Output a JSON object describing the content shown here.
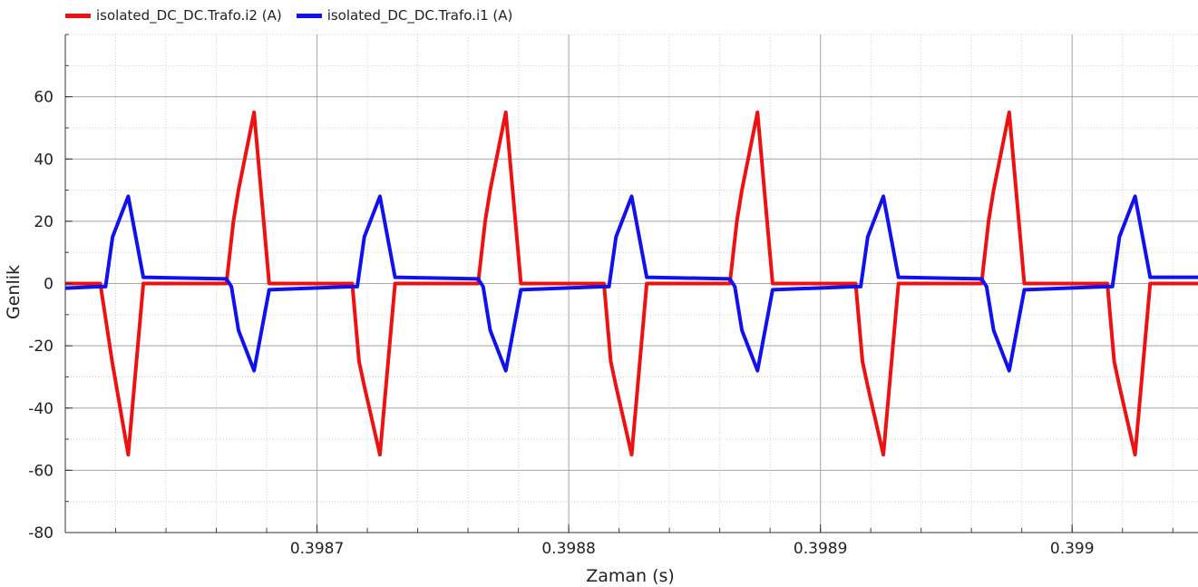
{
  "chart_data": {
    "type": "line",
    "xlabel": "Zaman (s)",
    "ylabel": "Genlik",
    "xlim": [
      0.3986,
      0.39905
    ],
    "ylim": [
      -80,
      80
    ],
    "x_ticks": [
      0.3987,
      0.3988,
      0.3989,
      0.399
    ],
    "x_tick_labels": [
      "0.3987",
      "0.3988",
      "0.3989",
      "0.399"
    ],
    "y_ticks": [
      -80,
      -60,
      -40,
      -20,
      0,
      20,
      40,
      60
    ],
    "y_tick_labels": [
      "-80",
      "-60",
      "-40",
      "-20",
      "0",
      "20",
      "40",
      "60"
    ],
    "grid": true,
    "legend_position": "top-left",
    "series": [
      {
        "name": "isolated_DC_DC.Trafo.i2 (A)",
        "color": "#ee1111",
        "x": [
          0.3986,
          0.3986139,
          0.3986186,
          0.398625,
          0.398631,
          0.398664,
          0.3986668,
          0.3986688,
          0.398675,
          0.398681,
          0.398714,
          0.3987167,
          0.3987188,
          0.398725,
          0.398731,
          0.398764,
          0.3987668,
          0.3987688,
          0.398775,
          0.398781,
          0.398814,
          0.3988167,
          0.3988188,
          0.398825,
          0.398831,
          0.398864,
          0.3988668,
          0.3988688,
          0.398875,
          0.398881,
          0.398914,
          0.3989167,
          0.3989188,
          0.398925,
          0.398931,
          0.398964,
          0.3989668,
          0.3989688,
          0.398975,
          0.398981,
          0.399014,
          0.3990167,
          0.3990188,
          0.399025,
          0.399031,
          0.39905
        ],
        "y": [
          0,
          0,
          -25,
          -55,
          0,
          0,
          20,
          30,
          55,
          0,
          0,
          -25,
          -33,
          -55,
          0,
          0,
          20,
          30,
          55,
          0,
          0,
          -25,
          -33,
          -55,
          0,
          0,
          20,
          30,
          55,
          0,
          0,
          -25,
          -33,
          -55,
          0,
          0,
          20,
          30,
          55,
          0,
          0,
          -25,
          -33,
          -55,
          0,
          0
        ]
      },
      {
        "name": "isolated_DC_DC.Trafo.i1 (A)",
        "color": "#1111ee",
        "x": [
          0.3986,
          0.398614,
          0.398616,
          0.3986188,
          0.398625,
          0.398631,
          0.398664,
          0.398666,
          0.3986688,
          0.398675,
          0.398681,
          0.398714,
          0.398716,
          0.3987188,
          0.398725,
          0.398731,
          0.398764,
          0.398766,
          0.3987688,
          0.398775,
          0.398781,
          0.398814,
          0.398816,
          0.3988188,
          0.398825,
          0.398831,
          0.398864,
          0.398866,
          0.3988688,
          0.398875,
          0.398881,
          0.398914,
          0.398916,
          0.3989188,
          0.398925,
          0.398931,
          0.398964,
          0.398966,
          0.3989688,
          0.398975,
          0.398981,
          0.399014,
          0.399016,
          0.3990188,
          0.399025,
          0.399031,
          0.39905
        ],
        "y": [
          -1.5,
          -1,
          -1,
          15,
          28,
          2,
          1.5,
          -1,
          -15,
          -28,
          -2,
          -1,
          -1,
          15,
          28,
          2,
          1.5,
          -1,
          -15,
          -28,
          -2,
          -1,
          -1,
          15,
          28,
          2,
          1.5,
          -1,
          -15,
          -28,
          -2,
          -1,
          -1,
          15,
          28,
          2,
          1.5,
          -1,
          -15,
          -28,
          -2,
          -1,
          -1,
          15,
          28,
          2,
          2
        ]
      }
    ]
  }
}
